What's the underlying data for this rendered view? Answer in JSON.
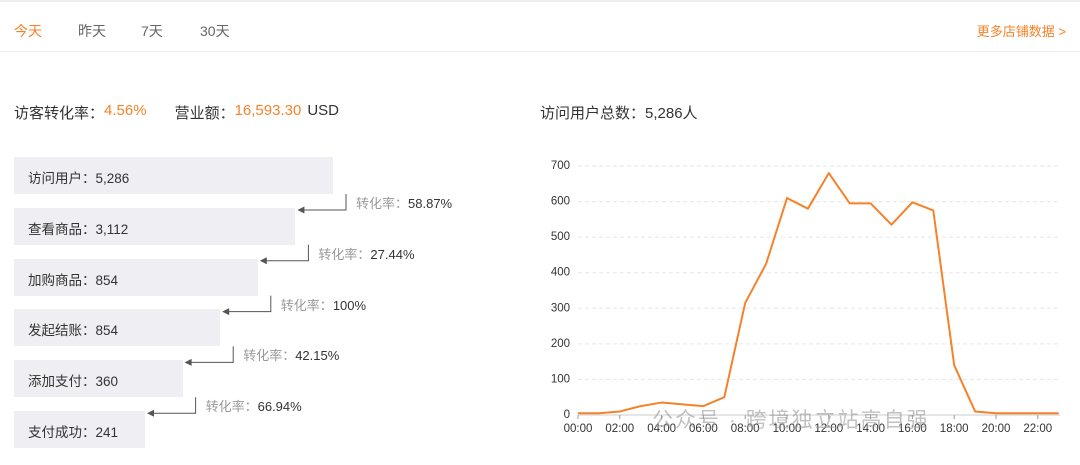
{
  "tabs": [
    "今天",
    "昨天",
    "7天",
    "30天"
  ],
  "more_link": "更多店铺数据 >",
  "summary": {
    "conversion_label": "访客转化率：",
    "conversion_value": "4.56%",
    "revenue_label": "营业额：",
    "revenue_value": "16,593.30",
    "revenue_unit": "USD",
    "visitors_label": "访问用户总数：",
    "visitors_value": "5,286人"
  },
  "funnel": {
    "steps": [
      {
        "label": "访问用户：",
        "value": "5,286"
      },
      {
        "label": "查看商品：",
        "value": "3,112"
      },
      {
        "label": "加购商品：",
        "value": "854"
      },
      {
        "label": "发起结账：",
        "value": "854"
      },
      {
        "label": "添加支付：",
        "value": "360"
      },
      {
        "label": "支付成功：",
        "value": "241"
      }
    ],
    "rate_label": "转化率：",
    "rates": [
      "58.87%",
      "27.44%",
      "100%",
      "42.15%",
      "66.94%"
    ]
  },
  "chart_data": {
    "type": "line",
    "color": "#f5822a",
    "grid": true,
    "categories": [
      "00:00",
      null,
      "02:00",
      null,
      "04:00",
      null,
      "06:00",
      null,
      "08:00",
      null,
      "10:00",
      null,
      "12:00",
      null,
      "14:00",
      null,
      "16:00",
      null,
      "18:00",
      null,
      "20:00",
      null,
      "22:00",
      null
    ],
    "values": [
      5,
      5,
      10,
      25,
      35,
      30,
      25,
      50,
      315,
      425,
      610,
      580,
      680,
      595,
      595,
      535,
      598,
      575,
      140,
      10,
      5,
      5,
      5,
      5
    ],
    "ylim": [
      0,
      700
    ],
    "yticks": [
      0,
      100,
      200,
      300,
      400,
      500,
      600,
      700
    ]
  },
  "watermark": "公众号 · 跨境独立站高自强"
}
